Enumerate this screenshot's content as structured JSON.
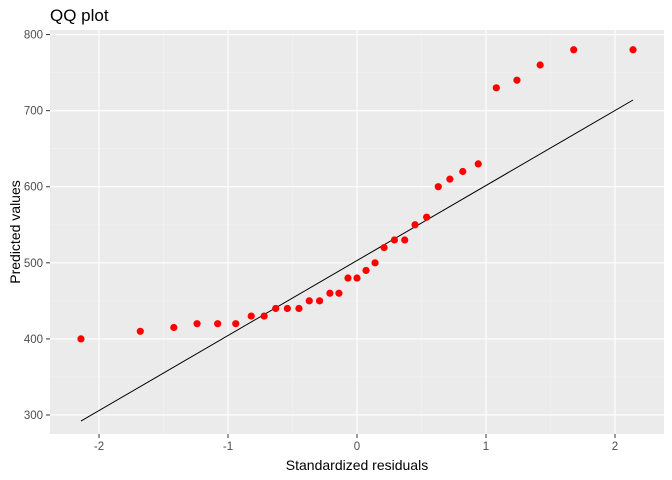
{
  "chart_data": {
    "type": "scatter",
    "title": "QQ plot",
    "xlabel": "Standardized residuals",
    "ylabel": "Predicted values",
    "xlim": [
      -2.38,
      2.38
    ],
    "ylim": [
      275,
      806
    ],
    "x_ticks": [
      -2,
      -1,
      0,
      1,
      2
    ],
    "x_tick_labels": [
      "-2",
      "-1",
      "0",
      "1",
      "2"
    ],
    "y_ticks": [
      300,
      400,
      500,
      600,
      700,
      800
    ],
    "y_tick_labels": [
      "300",
      "400",
      "500",
      "600",
      "700",
      "800"
    ],
    "grid": true,
    "colors": {
      "panel_background": "#ebebeb",
      "grid_major": "#ffffff",
      "grid_minor": "#f2f2f2",
      "points": "#ff0000",
      "reference_line": "#000000",
      "tick_label": "#4d4d4d",
      "tick_mark": "#333333"
    },
    "series": [
      {
        "kind": "points",
        "x": [
          -2.14,
          -1.68,
          -1.42,
          -1.24,
          -1.08,
          -0.94,
          -0.82,
          -0.72,
          -0.63,
          -0.54,
          -0.45,
          -0.37,
          -0.29,
          -0.21,
          -0.14,
          -0.07,
          0.0,
          0.07,
          0.14,
          0.21,
          0.29,
          0.37,
          0.45,
          0.54,
          0.63,
          0.72,
          0.82,
          0.94,
          1.08,
          1.24,
          1.42,
          1.68,
          2.14
        ],
        "y": [
          400,
          410,
          415,
          420,
          420,
          420,
          430,
          430,
          440,
          440,
          440,
          450,
          450,
          460,
          460,
          480,
          480,
          490,
          500,
          520,
          530,
          530,
          550,
          560,
          600,
          610,
          620,
          630,
          730,
          740,
          760,
          780,
          780
        ]
      },
      {
        "kind": "line",
        "x": [
          -2.14,
          2.14
        ],
        "y": [
          292,
          714
        ]
      }
    ]
  }
}
